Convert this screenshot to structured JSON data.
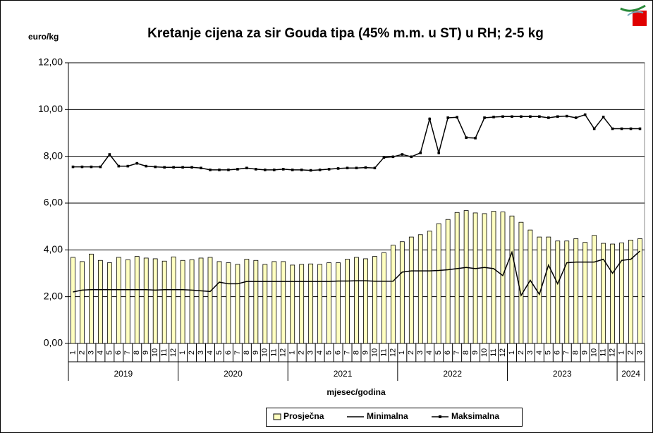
{
  "chart_data": {
    "type": "bar-line",
    "title": "Kretanje cijena za sir Gouda tipa  (45% m.m. u ST) u RH; 2-5 kg",
    "y_label": "euro/kg",
    "x_label": "mjesec/godina",
    "categories": [
      "1",
      "2",
      "3",
      "4",
      "5",
      "6",
      "7",
      "8",
      "9",
      "10",
      "11",
      "12",
      "1",
      "2",
      "3",
      "4",
      "5",
      "6",
      "7",
      "8",
      "9",
      "10",
      "11",
      "12",
      "1",
      "2",
      "3",
      "4",
      "5",
      "6",
      "7",
      "8",
      "9",
      "10",
      "11",
      "12",
      "1",
      "2",
      "3",
      "4",
      "5",
      "6",
      "7",
      "8",
      "9",
      "10",
      "11",
      "12",
      "1",
      "2",
      "3",
      "4",
      "5",
      "6",
      "7",
      "8",
      "9",
      "10",
      "11",
      "12",
      "1",
      "2",
      "3"
    ],
    "year_labels": [
      "2019",
      "2020",
      "2021",
      "2022",
      "2023",
      "2024"
    ],
    "ylim": [
      0,
      12
    ],
    "yticks": [
      {
        "value": 0,
        "label": "0,00"
      },
      {
        "value": 2,
        "label": "2,00"
      },
      {
        "value": 4,
        "label": "4,00"
      },
      {
        "value": 6,
        "label": "6,00"
      },
      {
        "value": 8,
        "label": "8,00"
      },
      {
        "value": 10,
        "label": "10,00"
      },
      {
        "value": 12,
        "label": "12,00"
      }
    ],
    "grid": true,
    "series": [
      {
        "name": "Prosječna",
        "kind": "bar",
        "color": "#ffffc0",
        "values": [
          3.68,
          3.5,
          3.82,
          3.55,
          3.45,
          3.68,
          3.58,
          3.72,
          3.65,
          3.62,
          3.52,
          3.7,
          3.55,
          3.58,
          3.65,
          3.68,
          3.5,
          3.45,
          3.38,
          3.6,
          3.55,
          3.38,
          3.5,
          3.5,
          3.35,
          3.38,
          3.4,
          3.38,
          3.45,
          3.45,
          3.6,
          3.68,
          3.62,
          3.72,
          3.88,
          4.2,
          4.35,
          4.55,
          4.65,
          4.8,
          5.12,
          5.3,
          5.6,
          5.68,
          5.58,
          5.55,
          5.65,
          5.62,
          5.45,
          5.18,
          4.85,
          4.55,
          4.55,
          4.38,
          4.38,
          4.48,
          4.32,
          4.62,
          4.28,
          4.25,
          4.3,
          4.42,
          4.48
        ]
      },
      {
        "name": "Minimalna",
        "kind": "line",
        "color": "#000000",
        "values": [
          2.2,
          2.28,
          2.3,
          2.3,
          2.3,
          2.3,
          2.3,
          2.3,
          2.3,
          2.28,
          2.3,
          2.3,
          2.3,
          2.28,
          2.25,
          2.22,
          2.62,
          2.55,
          2.55,
          2.65,
          2.65,
          2.65,
          2.65,
          2.65,
          2.65,
          2.65,
          2.65,
          2.65,
          2.65,
          2.67,
          2.67,
          2.68,
          2.68,
          2.66,
          2.66,
          2.66,
          3.05,
          3.1,
          3.1,
          3.1,
          3.12,
          3.15,
          3.2,
          3.25,
          3.2,
          3.25,
          3.2,
          2.9,
          3.9,
          2.05,
          2.7,
          2.1,
          3.35,
          2.55,
          3.45,
          3.48,
          3.48,
          3.48,
          3.6,
          3.0,
          3.55,
          3.6,
          3.95
        ]
      },
      {
        "name": "Maksimalna",
        "kind": "line-marker",
        "color": "#000000",
        "values": [
          7.55,
          7.55,
          7.55,
          7.55,
          8.08,
          7.58,
          7.58,
          7.7,
          7.58,
          7.55,
          7.53,
          7.53,
          7.53,
          7.53,
          7.5,
          7.42,
          7.42,
          7.42,
          7.45,
          7.5,
          7.45,
          7.42,
          7.42,
          7.45,
          7.42,
          7.42,
          7.4,
          7.42,
          7.45,
          7.48,
          7.5,
          7.5,
          7.52,
          7.5,
          7.95,
          7.98,
          8.08,
          7.98,
          8.15,
          9.6,
          8.15,
          9.65,
          9.67,
          8.8,
          8.78,
          9.65,
          9.68,
          9.7,
          9.7,
          9.7,
          9.7,
          9.7,
          9.65,
          9.7,
          9.72,
          9.65,
          9.78,
          9.18,
          9.68,
          9.18,
          9.18,
          9.18,
          9.18
        ]
      }
    ]
  }
}
